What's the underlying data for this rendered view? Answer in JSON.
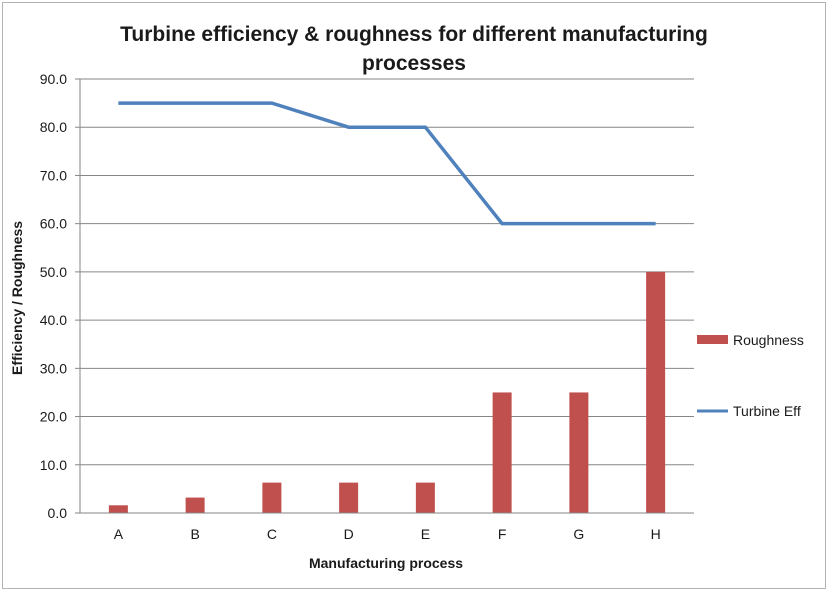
{
  "chart_data": {
    "type": "bar+line",
    "title_lines": [
      "Turbine efficiency & roughness for different manufacturing",
      "processes"
    ],
    "xlabel": "Manufacturing process",
    "ylabel": "Efficiency / Roughness",
    "categories": [
      "A",
      "B",
      "C",
      "D",
      "E",
      "F",
      "G",
      "H"
    ],
    "ylim": [
      0,
      90
    ],
    "yticks": [
      "0.0",
      "10.0",
      "20.0",
      "30.0",
      "40.0",
      "50.0",
      "60.0",
      "70.0",
      "80.0",
      "90.0"
    ],
    "grid": true,
    "legend_position": "right",
    "series": [
      {
        "name": "Roughness",
        "type": "bar",
        "color": "#c0504d",
        "values": [
          1.6,
          3.2,
          6.3,
          6.3,
          6.3,
          25,
          25,
          50
        ]
      },
      {
        "name": "Turbine Eff",
        "type": "line",
        "color": "#4f81bd",
        "values": [
          85,
          85,
          85,
          80,
          80,
          60,
          60,
          60
        ]
      }
    ]
  }
}
